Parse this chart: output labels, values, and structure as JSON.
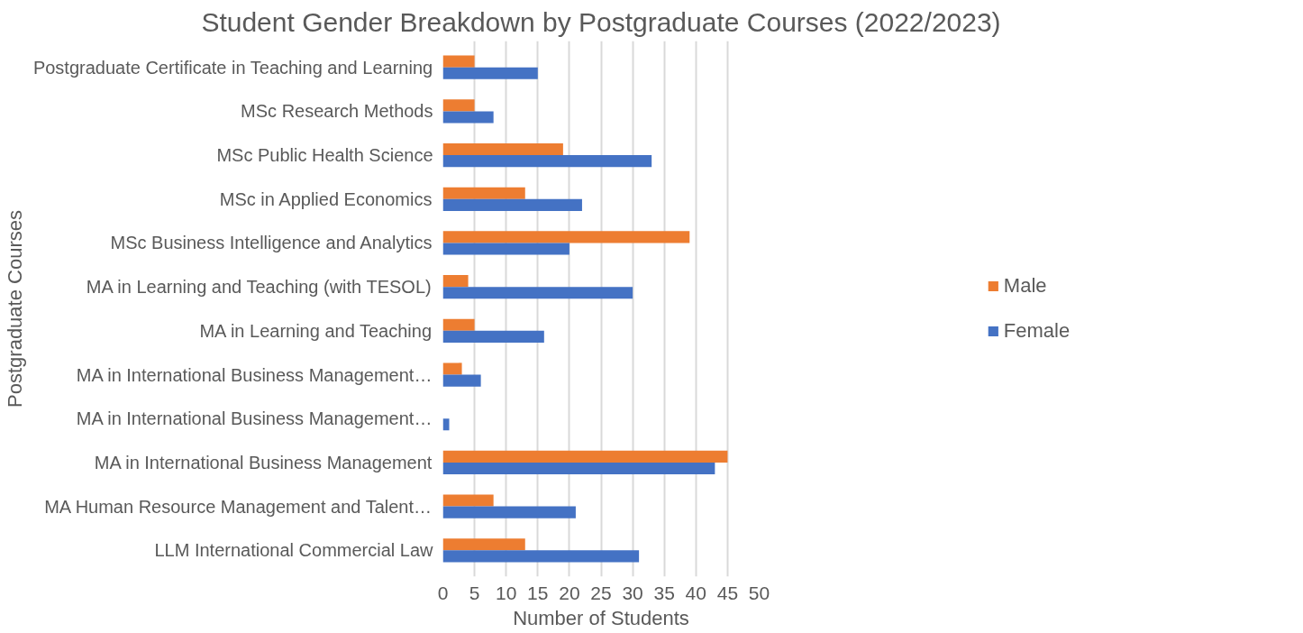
{
  "chart_data": {
    "type": "bar",
    "orientation": "horizontal",
    "title": "Student Gender Breakdown by Postgraduate Courses (2022/2023)",
    "xlabel": "Number of Students",
    "ylabel": "Postgraduate Courses",
    "categories": [
      "Postgraduate Certificate in Teaching and Learning",
      "MSc Research Methods",
      "MSc Public Health Science",
      "MSc in Applied Economics",
      "MSc Business Intelligence and Analytics",
      "MA in Learning and Teaching (with TESOL)",
      "MA in Learning and Teaching",
      "MA in International Business Management…",
      "MA in International Business Management…",
      "MA in International Business Management",
      "MA Human Resource Management and Talent…",
      "LLM International Commercial Law"
    ],
    "series": [
      {
        "name": "Male",
        "color": "#ed7d31",
        "values": [
          5,
          5,
          19,
          13,
          39,
          4,
          5,
          3,
          0,
          45,
          8,
          13
        ]
      },
      {
        "name": "Female",
        "color": "#4472c4",
        "values": [
          15,
          8,
          33,
          22,
          20,
          30,
          16,
          6,
          1,
          43,
          21,
          31
        ]
      }
    ],
    "xlim": [
      0,
      50
    ],
    "xticks": [
      0,
      5,
      10,
      15,
      20,
      25,
      30,
      35,
      40,
      45,
      50
    ],
    "grid": "x",
    "legend": "right"
  }
}
